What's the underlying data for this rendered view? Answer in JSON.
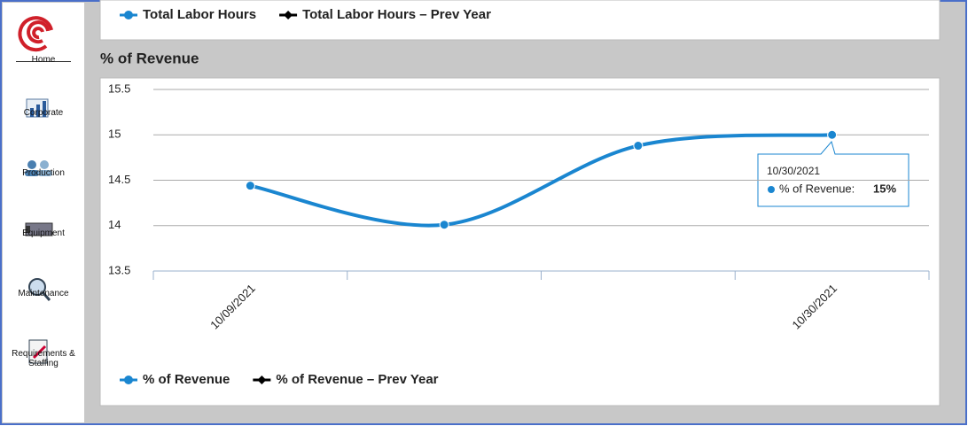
{
  "nav": [
    "Home",
    "Corporate",
    "Production",
    "Equipment",
    "Maintenance",
    "Requirements & Staffing"
  ],
  "top_legend": [
    {
      "name": "Total Labor Hours",
      "color": "#1a86d0"
    },
    {
      "name": "Total Labor Hours – Prev Year",
      "color": "#000000"
    }
  ],
  "chart_data": {
    "type": "line",
    "title": "% of Revenue",
    "categories": [
      "10/09/2021",
      null,
      null,
      "10/30/2021"
    ],
    "series": [
      {
        "name": "% of Revenue",
        "color": "#1a86d0",
        "values": [
          14.44,
          14.01,
          14.88,
          15.0
        ]
      },
      {
        "name": "% of Revenue – Prev Year",
        "color": "#000000",
        "values": [
          null,
          null,
          null,
          null
        ]
      }
    ],
    "ylim": [
      13.5,
      15.5
    ],
    "yticks": [
      13.5,
      14,
      14.5,
      15,
      15.5
    ],
    "grid": true,
    "tooltip": {
      "date": "10/30/2021",
      "label": "% of Revenue:",
      "value": "15%"
    }
  }
}
